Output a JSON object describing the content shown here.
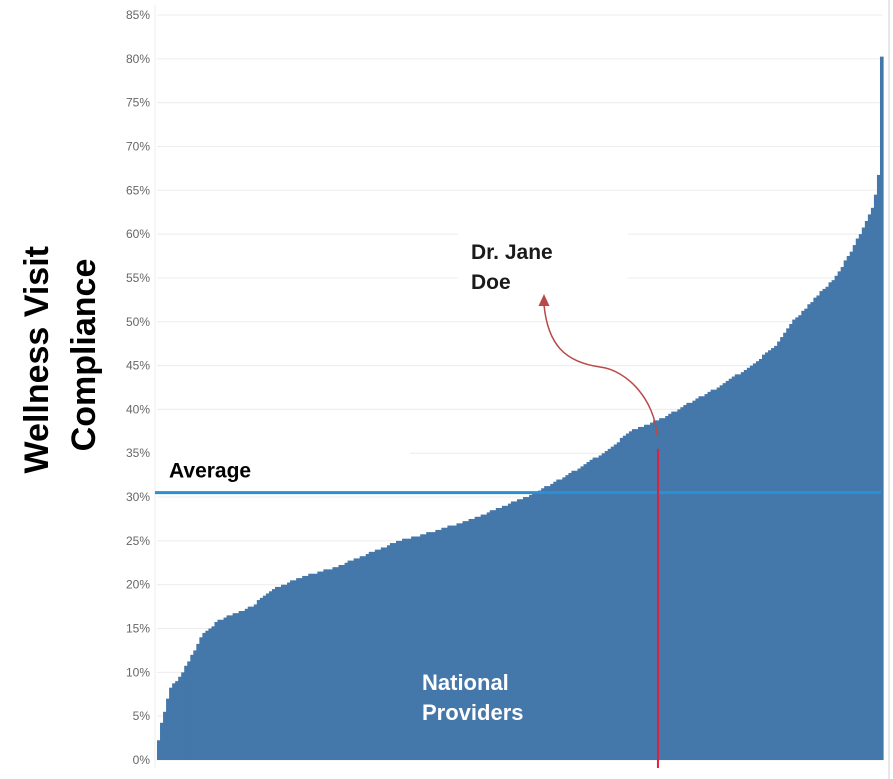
{
  "colors": {
    "bars": "#4477aa",
    "average_line": "#2b8fd4",
    "provider_line": "#e0203c",
    "arrow": "#b84a4a",
    "grid": "#ececec",
    "tick_text": "#666666"
  },
  "chart_data": {
    "type": "bar",
    "ylabel_lines": [
      "Wellness Visit",
      "Compliance"
    ],
    "xlabel": "",
    "ylim": [
      0,
      0.85
    ],
    "y_ticks": [
      0,
      0.05,
      0.1,
      0.15,
      0.2,
      0.25,
      0.3,
      0.35,
      0.4,
      0.45,
      0.5,
      0.55,
      0.6,
      0.65,
      0.7,
      0.75,
      0.8,
      0.85
    ],
    "y_tick_labels": [
      "0%",
      "5%",
      "10%",
      "15%",
      "20%",
      "25%",
      "30%",
      "35%",
      "40%",
      "45%",
      "50%",
      "55%",
      "60%",
      "65%",
      "70%",
      "75%",
      "80%",
      "85%"
    ],
    "grid": "horizontal",
    "sorted_ascending": true,
    "provider_count": 240,
    "profile": [
      [
        0,
        0.0
      ],
      [
        1,
        0.03
      ],
      [
        3,
        0.05
      ],
      [
        6,
        0.08
      ],
      [
        12,
        0.1
      ],
      [
        18,
        0.125
      ],
      [
        22,
        0.145
      ],
      [
        30,
        0.16
      ],
      [
        45,
        0.175
      ],
      [
        55,
        0.195
      ],
      [
        70,
        0.21
      ],
      [
        85,
        0.22
      ],
      [
        100,
        0.235
      ],
      [
        115,
        0.25
      ],
      [
        130,
        0.26
      ],
      [
        150,
        0.275
      ],
      [
        165,
        0.29
      ],
      [
        180,
        0.305
      ],
      [
        195,
        0.325
      ],
      [
        205,
        0.34
      ],
      [
        215,
        0.355
      ],
      [
        225,
        0.375
      ],
      [
        240,
        0.39
      ],
      [
        255,
        0.41
      ],
      [
        270,
        0.43
      ],
      [
        285,
        0.455
      ],
      [
        295,
        0.475
      ],
      [
        302,
        0.5
      ],
      [
        312,
        0.525
      ],
      [
        322,
        0.55
      ],
      [
        330,
        0.58
      ],
      [
        336,
        0.61
      ],
      [
        340,
        0.63
      ],
      [
        342,
        0.65
      ],
      [
        343,
        0.67
      ],
      [
        344,
        0.8
      ],
      [
        345,
        0.81
      ]
    ],
    "average": {
      "value": 0.305,
      "label": "Average"
    },
    "highlight": {
      "label": "Dr. Jane Doe",
      "label_lines": [
        "Dr. Jane",
        "Doe"
      ],
      "value": 0.355,
      "rank_fraction": 0.69
    },
    "annotations": [
      "National",
      "Providers"
    ]
  }
}
